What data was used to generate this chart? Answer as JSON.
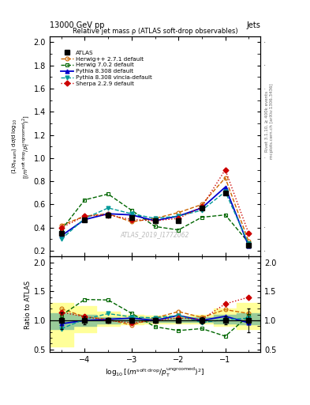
{
  "title_main": "13000 GeV pp",
  "title_right": "Jets",
  "plot_title": "Relative jet mass ρ (ATLAS soft-drop observables)",
  "watermark": "ATLAS_2019_I1772062",
  "right_label_top": "Rivet 3.1.10, ≥ 400k events",
  "right_label_bot": "mcplots.cern.ch [arXiv:1306.3436]",
  "ylabel_main": "(1/σ_{resum}) dσ/d log_{10}[(m^{soft drop}/p_T^{ungroomed})^2]",
  "ylabel_ratio": "Ratio to ATLAS",
  "x_values": [
    -4.5,
    -4.0,
    -3.5,
    -3.0,
    -2.5,
    -2.0,
    -1.5,
    -1.0,
    -0.5
  ],
  "xlim": [
    -4.75,
    -0.25
  ],
  "ylim_main": [
    0.15,
    2.05
  ],
  "ylim_ratio": [
    0.45,
    2.1
  ],
  "yticks_main": [
    0.2,
    0.4,
    0.6,
    0.8,
    1.0,
    1.2,
    1.4,
    1.6,
    1.8,
    2.0
  ],
  "yticks_ratio": [
    0.5,
    1.0,
    1.5,
    2.0
  ],
  "xticks": [
    -4,
    -3,
    -2,
    -1
  ],
  "atlas_data": [
    0.35,
    0.47,
    0.51,
    0.49,
    0.46,
    0.46,
    0.57,
    0.7,
    0.25
  ],
  "herwig271_data": [
    0.42,
    0.5,
    0.52,
    0.45,
    0.48,
    0.53,
    0.6,
    0.83,
    0.28
  ],
  "herwig702_data": [
    0.38,
    0.64,
    0.69,
    0.55,
    0.41,
    0.38,
    0.49,
    0.51,
    0.27
  ],
  "pythia308_data": [
    0.33,
    0.47,
    0.52,
    0.51,
    0.46,
    0.5,
    0.57,
    0.75,
    0.24
  ],
  "pythia308v_data": [
    0.3,
    0.48,
    0.57,
    0.52,
    0.48,
    0.5,
    0.55,
    0.71,
    0.26
  ],
  "sherpa229_data": [
    0.4,
    0.5,
    0.51,
    0.47,
    0.46,
    0.48,
    0.58,
    0.9,
    0.35
  ],
  "atlas_err_low": [
    0.05,
    0.03,
    0.02,
    0.02,
    0.02,
    0.02,
    0.03,
    0.05,
    0.05
  ],
  "atlas_err_high": [
    0.05,
    0.03,
    0.02,
    0.02,
    0.02,
    0.02,
    0.03,
    0.05,
    0.05
  ],
  "band_yellow_low": [
    0.55,
    0.8,
    0.9,
    0.93,
    0.95,
    0.95,
    0.95,
    0.9,
    0.85
  ],
  "band_yellow_high": [
    1.3,
    1.25,
    1.15,
    1.1,
    1.08,
    1.08,
    1.1,
    1.2,
    1.3
  ],
  "band_green_low": [
    0.85,
    0.9,
    0.95,
    0.97,
    0.97,
    0.97,
    0.97,
    0.95,
    0.93
  ],
  "band_green_high": [
    1.12,
    1.1,
    1.06,
    1.04,
    1.04,
    1.04,
    1.06,
    1.1,
    1.12
  ],
  "color_atlas": "#000000",
  "color_herwig271": "#cc6600",
  "color_herwig702": "#006600",
  "color_pythia308": "#0000cc",
  "color_pythia308v": "#009999",
  "color_sherpa229": "#cc0000",
  "color_yellow": "#ffff99",
  "color_green": "#99cc99"
}
